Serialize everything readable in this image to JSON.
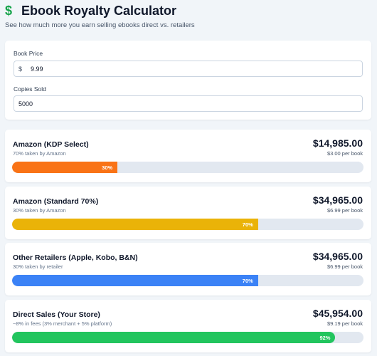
{
  "header": {
    "icon": "dollar-icon",
    "title": "Ebook Royalty Calculator",
    "subtitle": "See how much more you earn selling ebooks direct vs. retailers"
  },
  "inputs": {
    "price_label": "Book Price",
    "price_prefix": "$",
    "price_value": "9.99",
    "copies_label": "Copies Sold",
    "copies_value": "5000"
  },
  "results": [
    {
      "name": "Amazon (KDP Select)",
      "sub": "70% taken by Amazon",
      "amount": "$14,985.00",
      "per_book": "$3.00 per book",
      "percent": 30,
      "percent_label": "30%",
      "color": "#f97316"
    },
    {
      "name": "Amazon (Standard 70%)",
      "sub": "30% taken by Amazon",
      "amount": "$34,965.00",
      "per_book": "$6.99 per book",
      "percent": 70,
      "percent_label": "70%",
      "color": "#eab308"
    },
    {
      "name": "Other Retailers (Apple, Kobo, B&N)",
      "sub": "30% taken by retailer",
      "amount": "$34,965.00",
      "per_book": "$6.99 per book",
      "percent": 70,
      "percent_label": "70%",
      "color": "#3b82f6"
    },
    {
      "name": "Direct Sales (Your Store)",
      "sub": "~8% in fees (3% merchant + 5% platform)",
      "amount": "$45,954.00",
      "per_book": "$9.19 per book",
      "percent": 92,
      "percent_label": "92%",
      "color": "#22c55e"
    }
  ]
}
